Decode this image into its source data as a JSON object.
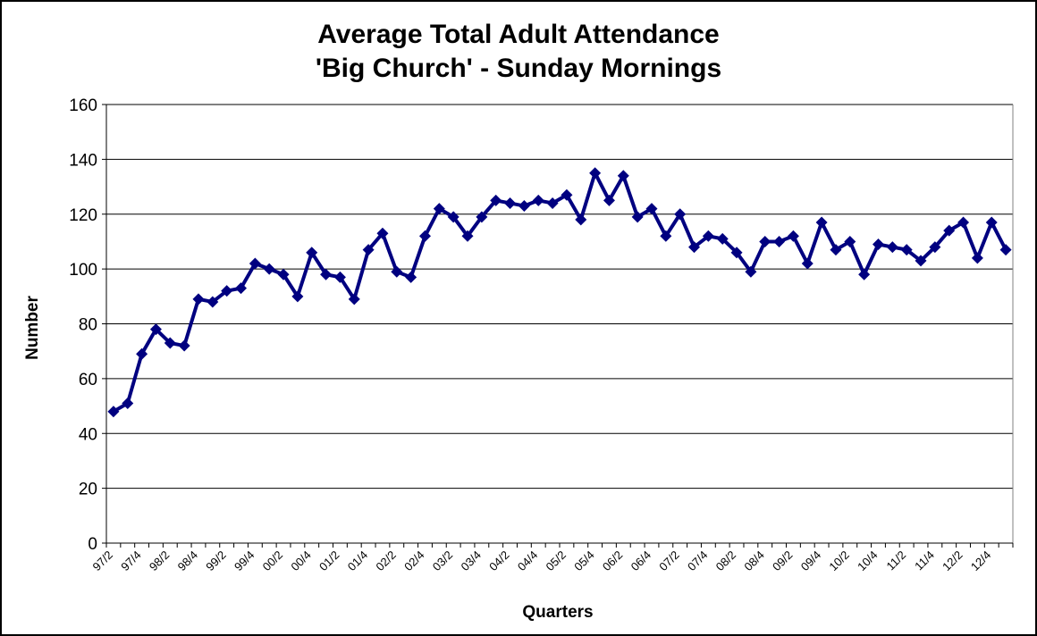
{
  "chart_data": {
    "type": "line",
    "title_line1": "Average Total Adult Attendance",
    "title_line2": "'Big Church' - Sunday Mornings",
    "xlabel": "Quarters",
    "ylabel": "Number",
    "ylim": [
      0,
      160
    ],
    "yticks": [
      0,
      20,
      40,
      60,
      80,
      100,
      120,
      140,
      160
    ],
    "grid": "horizontal",
    "legend": "none",
    "series_color": "#000080",
    "x": [
      "97/2",
      "97/3",
      "97/4",
      "98/1",
      "98/2",
      "98/3",
      "98/4",
      "99/1",
      "99/2",
      "99/3",
      "99/4",
      "00/1",
      "00/2",
      "00/3",
      "00/4",
      "01/1",
      "01/2",
      "01/3",
      "01/4",
      "02/1",
      "02/2",
      "02/3",
      "02/4",
      "03/1",
      "03/2",
      "03/3",
      "03/4",
      "04/1",
      "04/2",
      "04/3",
      "04/4",
      "05/1",
      "05/2",
      "05/3",
      "05/4",
      "06/1",
      "06/2",
      "06/3",
      "06/4",
      "07/1",
      "07/2",
      "07/3",
      "07/4",
      "08/1",
      "08/2",
      "08/3",
      "08/4",
      "09/1",
      "09/2",
      "09/3",
      "09/4",
      "10/1",
      "10/2",
      "10/3",
      "10/4",
      "11/1",
      "11/2",
      "11/3",
      "11/4",
      "12/1",
      "12/2",
      "12/3",
      "12/4",
      "13/1"
    ],
    "x_tick_labels": [
      "97/2",
      "97/4",
      "98/2",
      "98/4",
      "99/2",
      "99/4",
      "00/2",
      "00/4",
      "01/2",
      "01/4",
      "02/2",
      "02/4",
      "03/2",
      "03/4",
      "04/2",
      "04/4",
      "05/2",
      "05/4",
      "06/2",
      "06/4",
      "07/2",
      "07/4",
      "08/2",
      "08/4",
      "09/2",
      "09/4",
      "10/2",
      "10/4",
      "11/2",
      "11/4",
      "12/2",
      "12/4"
    ],
    "series": [
      {
        "values": [
          48,
          51,
          69,
          78,
          73,
          72,
          89,
          88,
          92,
          93,
          102,
          100,
          98,
          90,
          106,
          98,
          97,
          89,
          107,
          113,
          99,
          97,
          112,
          122,
          119,
          112,
          119,
          125,
          124,
          123,
          125,
          124,
          127,
          118,
          135,
          125,
          134,
          119,
          122,
          112,
          120,
          108,
          112,
          111,
          106,
          99,
          110,
          110,
          112,
          102,
          117,
          107,
          110,
          98,
          109,
          108,
          107,
          103,
          108,
          114,
          117,
          104,
          117,
          107
        ]
      }
    ]
  }
}
